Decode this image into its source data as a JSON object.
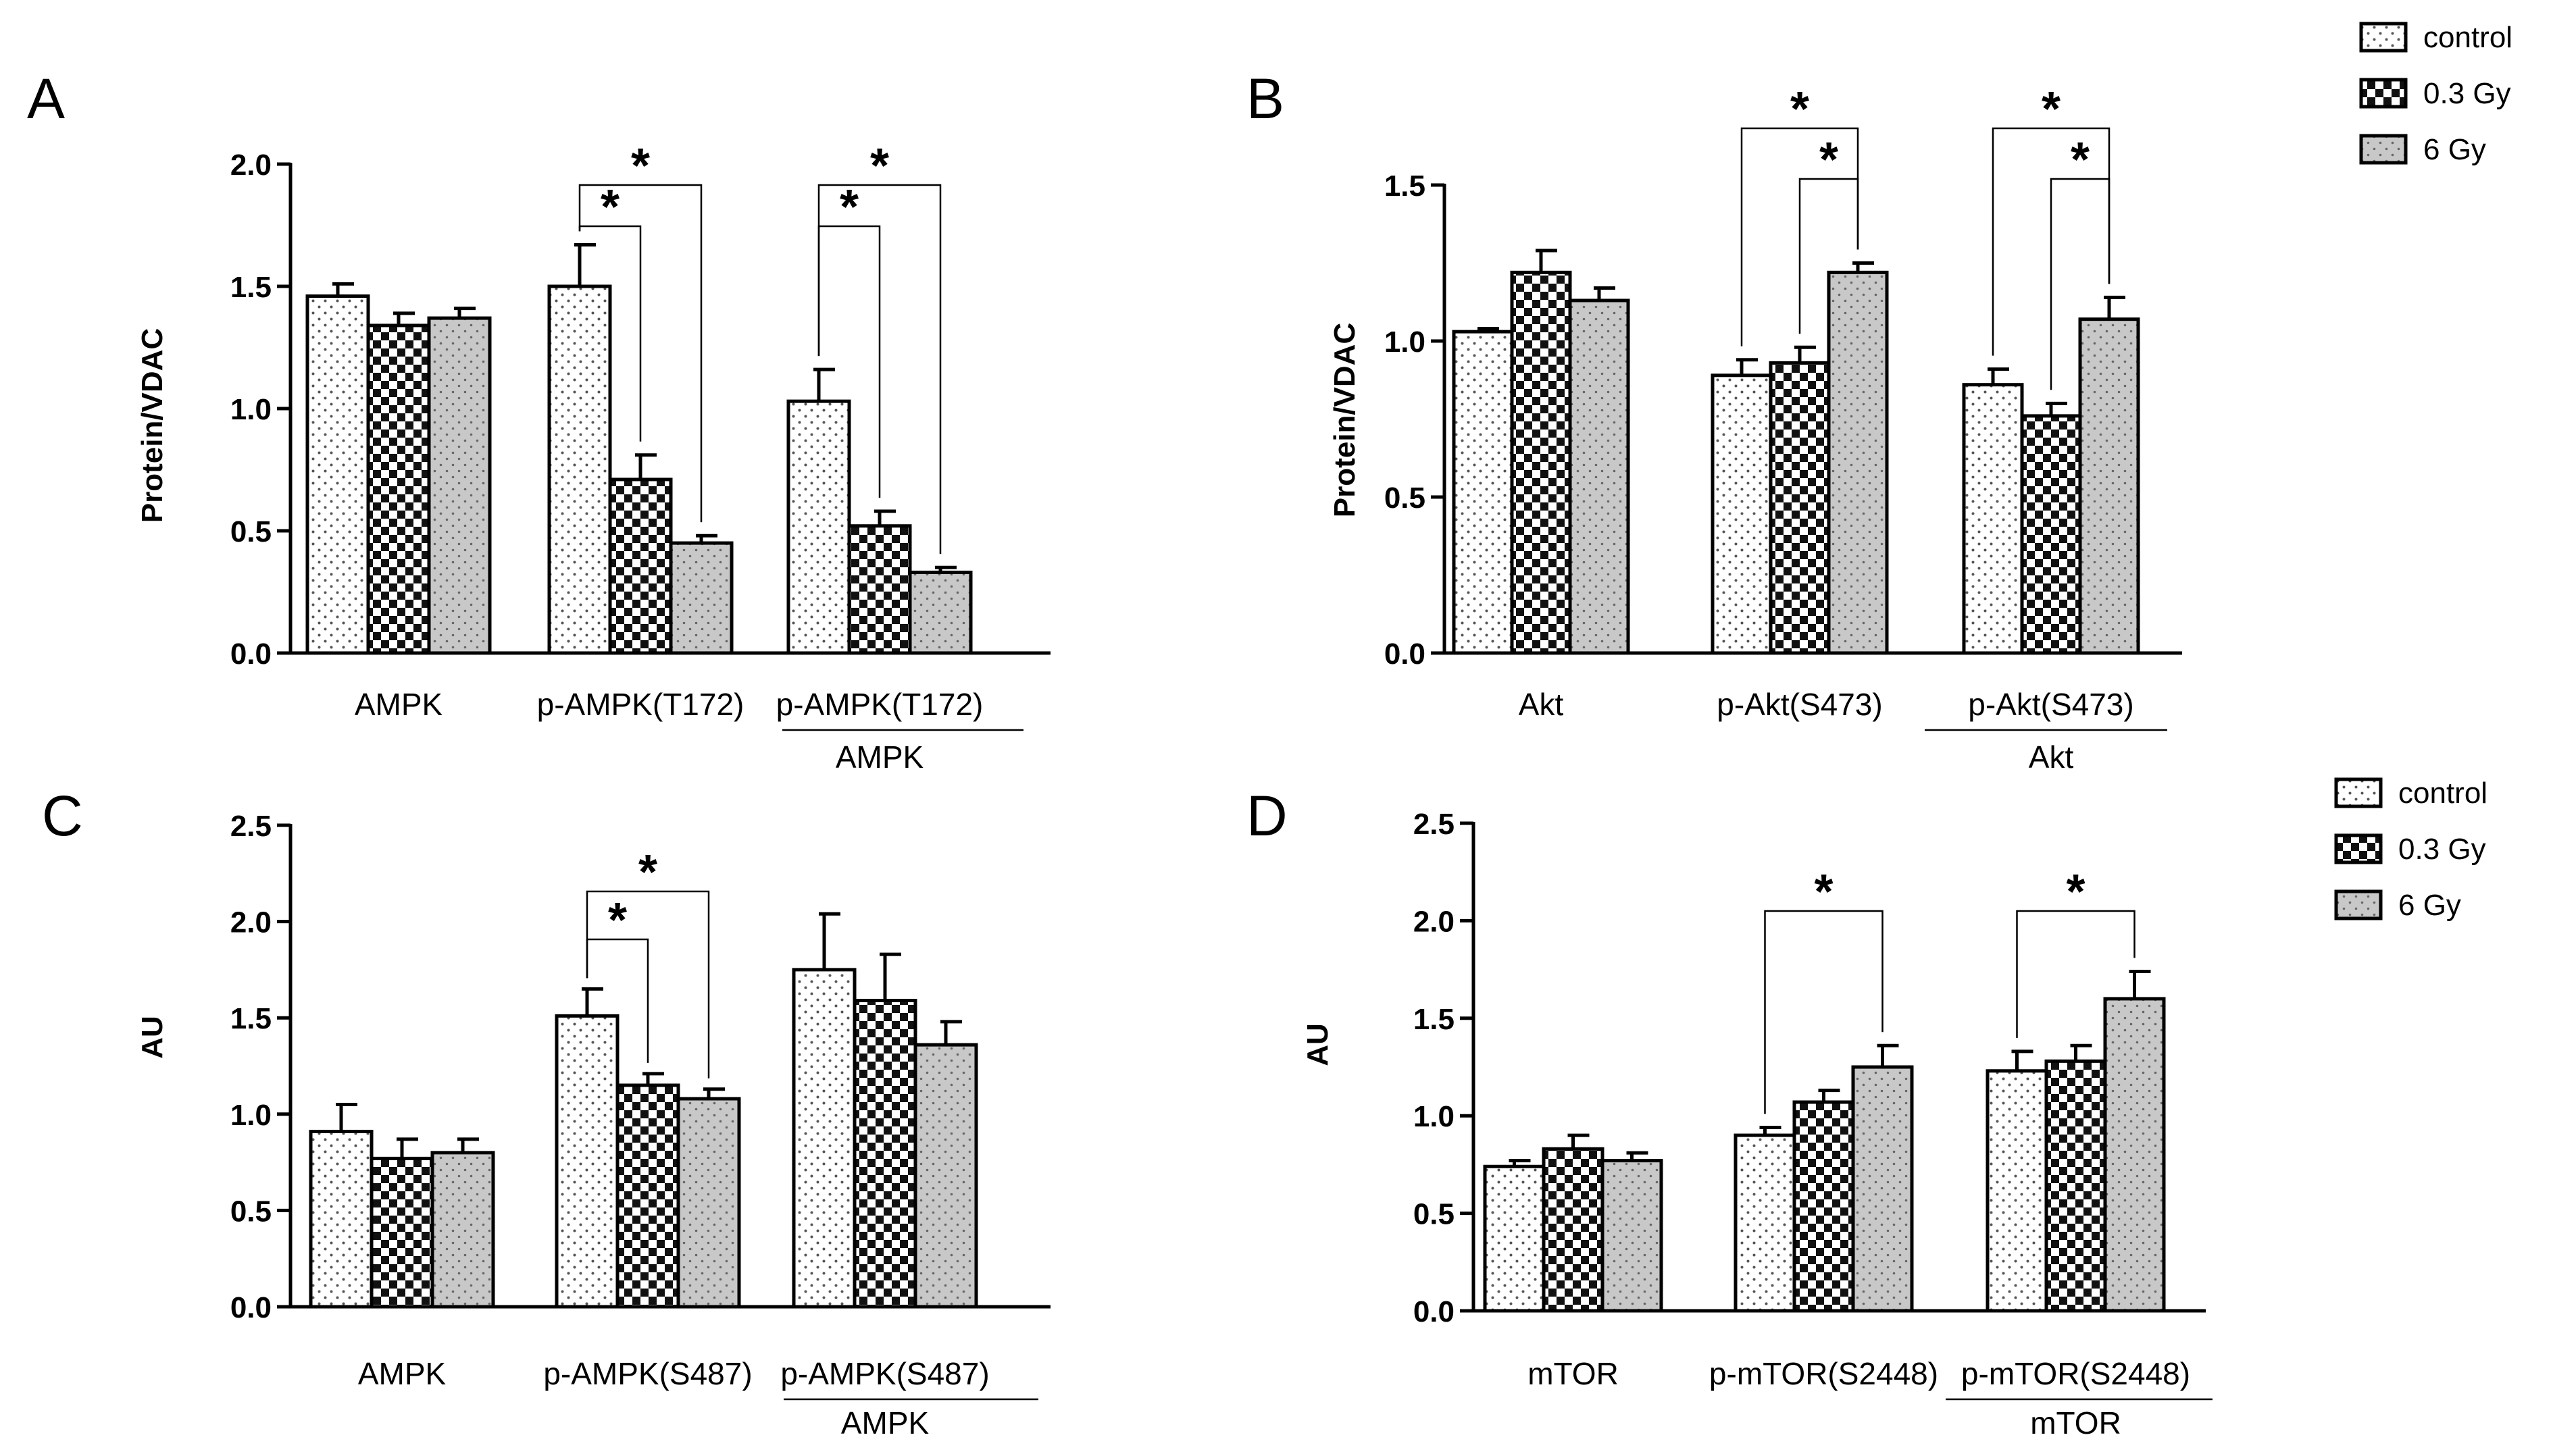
{
  "chart_data": [
    {
      "panel": "A",
      "type": "bar",
      "ylabel": "Protein/VDAC",
      "ylim": [
        0,
        2.0
      ],
      "yticks": [
        "0.0",
        "0.5",
        "1.0",
        "1.5",
        "2.0"
      ],
      "categories": [
        {
          "label": "AMPK"
        },
        {
          "label": "p-AMPK(T172)"
        },
        {
          "label": "p-AMPK(T172)",
          "denominator": "AMPK"
        }
      ],
      "series": [
        {
          "name": "control",
          "values": [
            1.46,
            1.5,
            1.03
          ],
          "errors": [
            0.05,
            0.17,
            0.13
          ]
        },
        {
          "name": "0.3 Gy",
          "values": [
            1.34,
            0.71,
            0.52
          ],
          "errors": [
            0.05,
            0.1,
            0.06
          ]
        },
        {
          "name": "6 Gy",
          "values": [
            1.37,
            0.45,
            0.33
          ],
          "errors": [
            0.04,
            0.03,
            0.02
          ]
        }
      ],
      "significance": [
        {
          "category": 1,
          "from": 0,
          "to": 1,
          "level": 1,
          "mark": "*"
        },
        {
          "category": 1,
          "from": 0,
          "to": 2,
          "level": 2,
          "mark": "*"
        },
        {
          "category": 2,
          "from": 0,
          "to": 1,
          "level": 1,
          "mark": "*"
        },
        {
          "category": 2,
          "from": 0,
          "to": 2,
          "level": 2,
          "mark": "*"
        }
      ]
    },
    {
      "panel": "B",
      "type": "bar",
      "ylabel": "Protein/VDAC",
      "ylim": [
        0,
        1.5
      ],
      "yticks": [
        "0.0",
        "0.5",
        "1.0",
        "1.5"
      ],
      "categories": [
        {
          "label": "Akt"
        },
        {
          "label": "p-Akt(S473)"
        },
        {
          "label": "p-Akt(S473)",
          "denominator": "Akt"
        }
      ],
      "series": [
        {
          "name": "control",
          "values": [
            1.03,
            0.89,
            0.86
          ],
          "errors": [
            0.01,
            0.05,
            0.05
          ]
        },
        {
          "name": "0.3 Gy",
          "values": [
            1.22,
            0.93,
            0.76
          ],
          "errors": [
            0.07,
            0.05,
            0.04
          ]
        },
        {
          "name": "6 Gy",
          "values": [
            1.13,
            1.22,
            1.07
          ],
          "errors": [
            0.04,
            0.03,
            0.07
          ]
        }
      ],
      "significance": [
        {
          "category": 1,
          "from": 1,
          "to": 2,
          "level": 1,
          "mark": "*"
        },
        {
          "category": 1,
          "from": 0,
          "to": 2,
          "level": 2,
          "mark": "*"
        },
        {
          "category": 2,
          "from": 1,
          "to": 2,
          "level": 1,
          "mark": "*"
        },
        {
          "category": 2,
          "from": 0,
          "to": 2,
          "level": 2,
          "mark": "*"
        }
      ]
    },
    {
      "panel": "C",
      "type": "bar",
      "ylabel": "AU",
      "ylim": [
        0,
        2.5
      ],
      "yticks": [
        "0.0",
        "0.5",
        "1.0",
        "1.5",
        "2.0",
        "2.5"
      ],
      "categories": [
        {
          "label": "AMPK"
        },
        {
          "label": "p-AMPK(S487)"
        },
        {
          "label": "p-AMPK(S487)",
          "denominator": "AMPK"
        }
      ],
      "series": [
        {
          "name": "control",
          "values": [
            0.91,
            1.51,
            1.75
          ],
          "errors": [
            0.14,
            0.14,
            0.29
          ]
        },
        {
          "name": "0.3 Gy",
          "values": [
            0.77,
            1.15,
            1.59
          ],
          "errors": [
            0.1,
            0.06,
            0.24
          ]
        },
        {
          "name": "6 Gy",
          "values": [
            0.8,
            1.08,
            1.36
          ],
          "errors": [
            0.07,
            0.05,
            0.12
          ]
        }
      ],
      "significance": [
        {
          "category": 1,
          "from": 0,
          "to": 1,
          "level": 1,
          "mark": "*"
        },
        {
          "category": 1,
          "from": 0,
          "to": 2,
          "level": 2,
          "mark": "*"
        }
      ]
    },
    {
      "panel": "D",
      "type": "bar",
      "ylabel": "AU",
      "ylim": [
        0,
        2.5
      ],
      "yticks": [
        "0.0",
        "0.5",
        "1.0",
        "1.5",
        "2.0",
        "2.5"
      ],
      "categories": [
        {
          "label": "mTOR"
        },
        {
          "label": "p-mTOR(S2448)"
        },
        {
          "label": "p-mTOR(S2448)",
          "denominator": "mTOR"
        }
      ],
      "series": [
        {
          "name": "control",
          "values": [
            0.74,
            0.9,
            1.23
          ],
          "errors": [
            0.03,
            0.04,
            0.1
          ]
        },
        {
          "name": "0.3 Gy",
          "values": [
            0.83,
            1.07,
            1.28
          ],
          "errors": [
            0.07,
            0.06,
            0.08
          ]
        },
        {
          "name": "6 Gy",
          "values": [
            0.77,
            1.25,
            1.6
          ],
          "errors": [
            0.04,
            0.11,
            0.14
          ]
        }
      ],
      "significance": [
        {
          "category": 1,
          "from": 0,
          "to": 2,
          "level": 1,
          "mark": "*"
        },
        {
          "category": 2,
          "from": 0,
          "to": 2,
          "level": 1,
          "mark": "*"
        }
      ]
    }
  ],
  "legends": [
    {
      "items": [
        "control",
        "0.3 Gy",
        "6 Gy"
      ]
    },
    {
      "items": [
        "control",
        "0.3 Gy",
        "6 Gy"
      ]
    }
  ],
  "colors": {
    "bar_outline": "#000000",
    "control_fill": "#ffffff",
    "gy03_fill": "#111111",
    "gy6_fill": "#c8c8c8",
    "axis": "#000000"
  },
  "patterns": [
    "dotted-white",
    "checkered-black",
    "dotted-gray"
  ]
}
